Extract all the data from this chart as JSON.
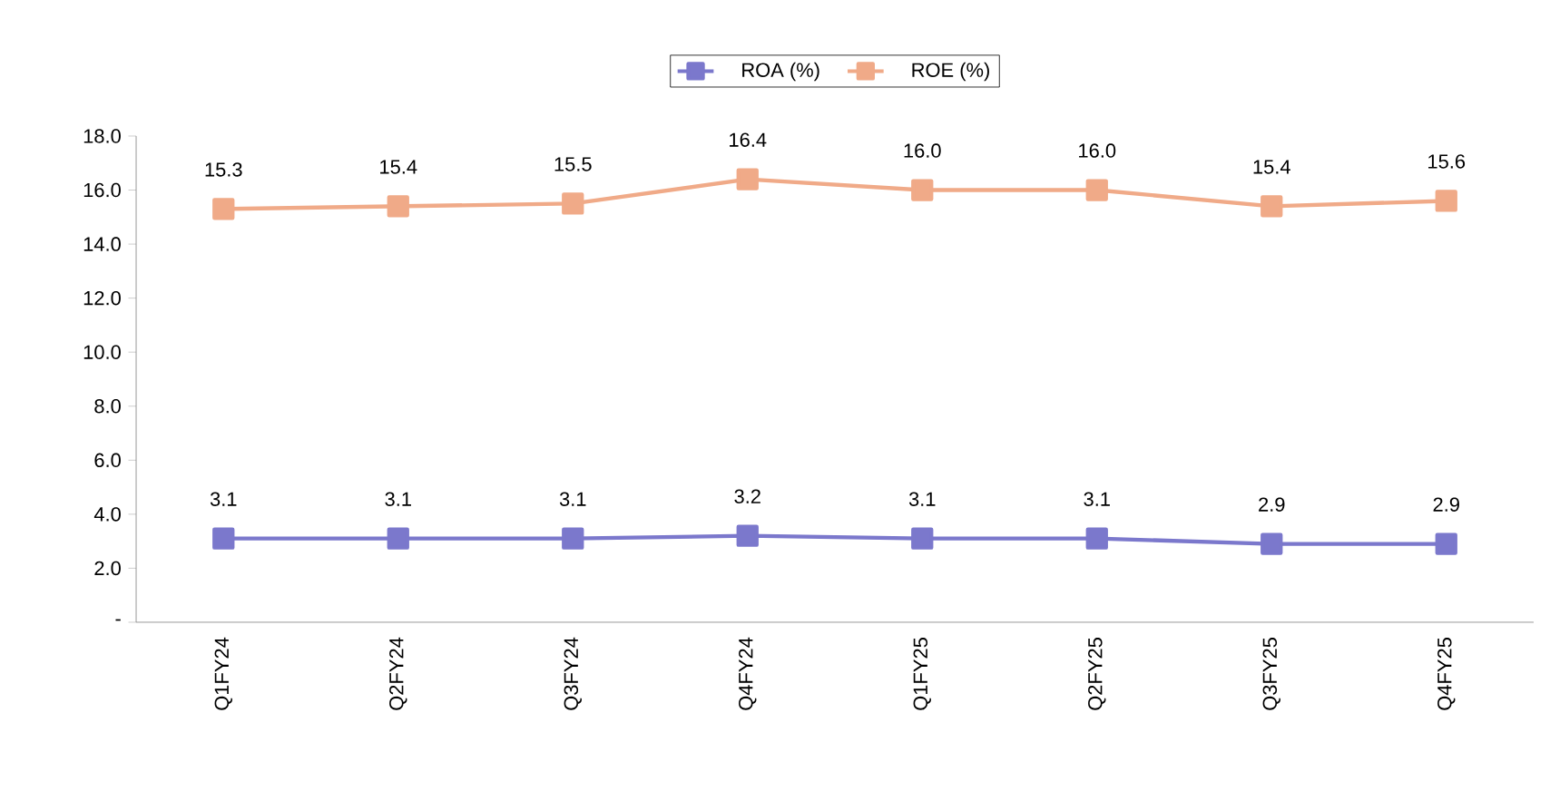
{
  "chart_data": {
    "type": "line",
    "categories": [
      "Q1FY24",
      "Q2FY24",
      "Q3FY24",
      "Q4FY24",
      "Q1FY25",
      "Q2FY25",
      "Q3FY25",
      "Q4FY25"
    ],
    "series": [
      {
        "name": "ROA (%)",
        "color": "#7b78cc",
        "values": [
          3.1,
          3.1,
          3.1,
          3.2,
          3.1,
          3.1,
          2.9,
          2.9
        ],
        "value_labels": [
          "3.1",
          "3.1",
          "3.1",
          "3.2",
          "3.1",
          "3.1",
          "2.9",
          "2.9"
        ]
      },
      {
        "name": "ROE (%)",
        "color": "#f0aa88",
        "values": [
          15.3,
          15.4,
          15.5,
          16.4,
          16.0,
          16.0,
          15.4,
          15.6
        ],
        "value_labels": [
          "15.3",
          "15.4",
          "15.5",
          "16.4",
          "16.0",
          "16.0",
          "15.4",
          "15.6"
        ]
      }
    ],
    "ylim": [
      0,
      18
    ],
    "yticks": [
      {
        "value": 0,
        "label": "-"
      },
      {
        "value": 2,
        "label": "2.0"
      },
      {
        "value": 4,
        "label": "4.0"
      },
      {
        "value": 6,
        "label": "6.0"
      },
      {
        "value": 8,
        "label": "8.0"
      },
      {
        "value": 10,
        "label": "10.0"
      },
      {
        "value": 12,
        "label": "12.0"
      },
      {
        "value": 14,
        "label": "14.0"
      },
      {
        "value": 16,
        "label": "16.0"
      },
      {
        "value": 18,
        "label": "18.0"
      }
    ],
    "legend": "top",
    "marker": "square",
    "line_style": "solid",
    "grid": false
  }
}
